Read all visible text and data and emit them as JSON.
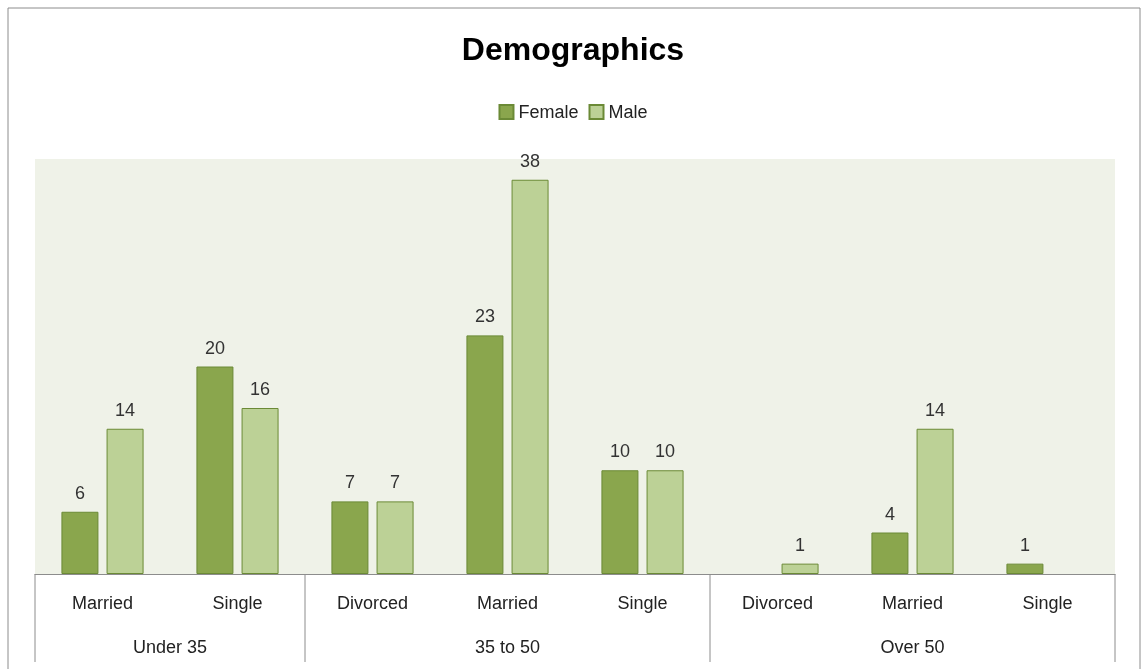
{
  "chart_data": {
    "type": "bar",
    "title": "Demographics",
    "categories": [
      "Married",
      "Single",
      "Divorced",
      "Married",
      "Single",
      "Divorced",
      "Married",
      "Single"
    ],
    "series": [
      {
        "name": "Female",
        "color": "#8aa64d",
        "values": [
          6,
          20,
          7,
          23,
          10,
          null,
          4,
          1
        ]
      },
      {
        "name": "Male",
        "color": "#bcd196",
        "values": [
          14,
          16,
          7,
          38,
          10,
          1,
          14,
          null
        ]
      }
    ],
    "annotations": [
      "Under 35",
      "35 to 50",
      "Over 50"
    ],
    "ylim": [
      0,
      40
    ],
    "data_labels": true,
    "legend": "top"
  }
}
